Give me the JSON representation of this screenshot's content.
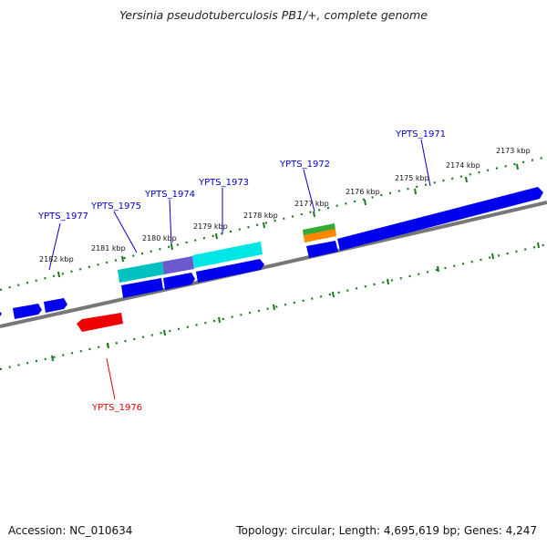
{
  "title": "Yersinia pseudotuberculosis PB1/+, complete genome",
  "footer": {
    "accession": "Accession: NC_010634",
    "topology": "Topology: circular; Length: 4,695,619 bp; Genes: 4,247"
  },
  "colors": {
    "backbone": "#888888",
    "tick": "#1a7a1a",
    "label_forward": "#0000cc",
    "label_reverse": "#dd0000",
    "gene_blue": "#0000ee",
    "gene_cyan": "#00cccc",
    "gene_purple": "#6a5acd",
    "gene_red": "#ee0000",
    "gene_green": "#33aa33",
    "gene_orange": "#ff8800"
  },
  "kbp_labels": [
    "2182 kbp",
    "2181 kbp",
    "2180 kbp",
    "2179 kbp",
    "2178 kbp",
    "2177 kbp",
    "2176 kbp",
    "2175 kbp",
    "2174 kbp",
    "2173 kbp"
  ],
  "gene_labels": {
    "g1977": "YPTS_1977",
    "g1975": "YPTS_1975",
    "g1974": "YPTS_1974",
    "g1973": "YPTS_1973",
    "g1972": "YPTS_1972",
    "g1971": "YPTS_1971",
    "g1976": "YPTS_1976"
  }
}
